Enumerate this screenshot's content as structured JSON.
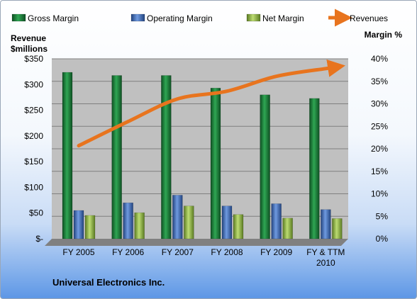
{
  "chart_data": {
    "type": "bar",
    "title": "Universal Electronics Inc.",
    "categories": [
      "FY 2005",
      "FY 2006",
      "FY 2007",
      "FY 2008",
      "FY 2009",
      "FY & TTM 2010"
    ],
    "series": [
      {
        "name": "Gross Margin",
        "type": "bar",
        "axis": "right",
        "values": [
          37.0,
          36.3,
          36.3,
          33.5,
          32.0,
          31.2
        ]
      },
      {
        "name": "Operating Margin",
        "type": "bar",
        "axis": "right",
        "values": [
          6.3,
          8.0,
          9.7,
          7.3,
          7.8,
          6.5
        ]
      },
      {
        "name": "Net Margin",
        "type": "bar",
        "axis": "right",
        "values": [
          5.2,
          5.8,
          7.3,
          5.4,
          4.6,
          4.5
        ]
      },
      {
        "name": "Revenues",
        "type": "line",
        "axis": "left",
        "values": [
          181,
          228,
          272,
          287,
          316,
          331
        ]
      }
    ],
    "left_axis": {
      "label": "Revenue $millions",
      "min": 0,
      "max": 350,
      "ticks": [
        "$-",
        "$50",
        "$100",
        "$150",
        "$200",
        "$250",
        "$300",
        "$350"
      ]
    },
    "right_axis": {
      "label": "Margin %",
      "min": 0,
      "max": 40,
      "ticks": [
        "0%",
        "5%",
        "10%",
        "15%",
        "20%",
        "25%",
        "30%",
        "35%",
        "40%"
      ]
    },
    "legend_position": "top",
    "grid": true,
    "colors": {
      "gross": "#1a7d3a",
      "operating": "#3d6ab3",
      "net": "#8bb43f",
      "revenue": "#e8741e",
      "plot_bg": "#c0c0c0",
      "grid": "#7f7f7f"
    }
  }
}
